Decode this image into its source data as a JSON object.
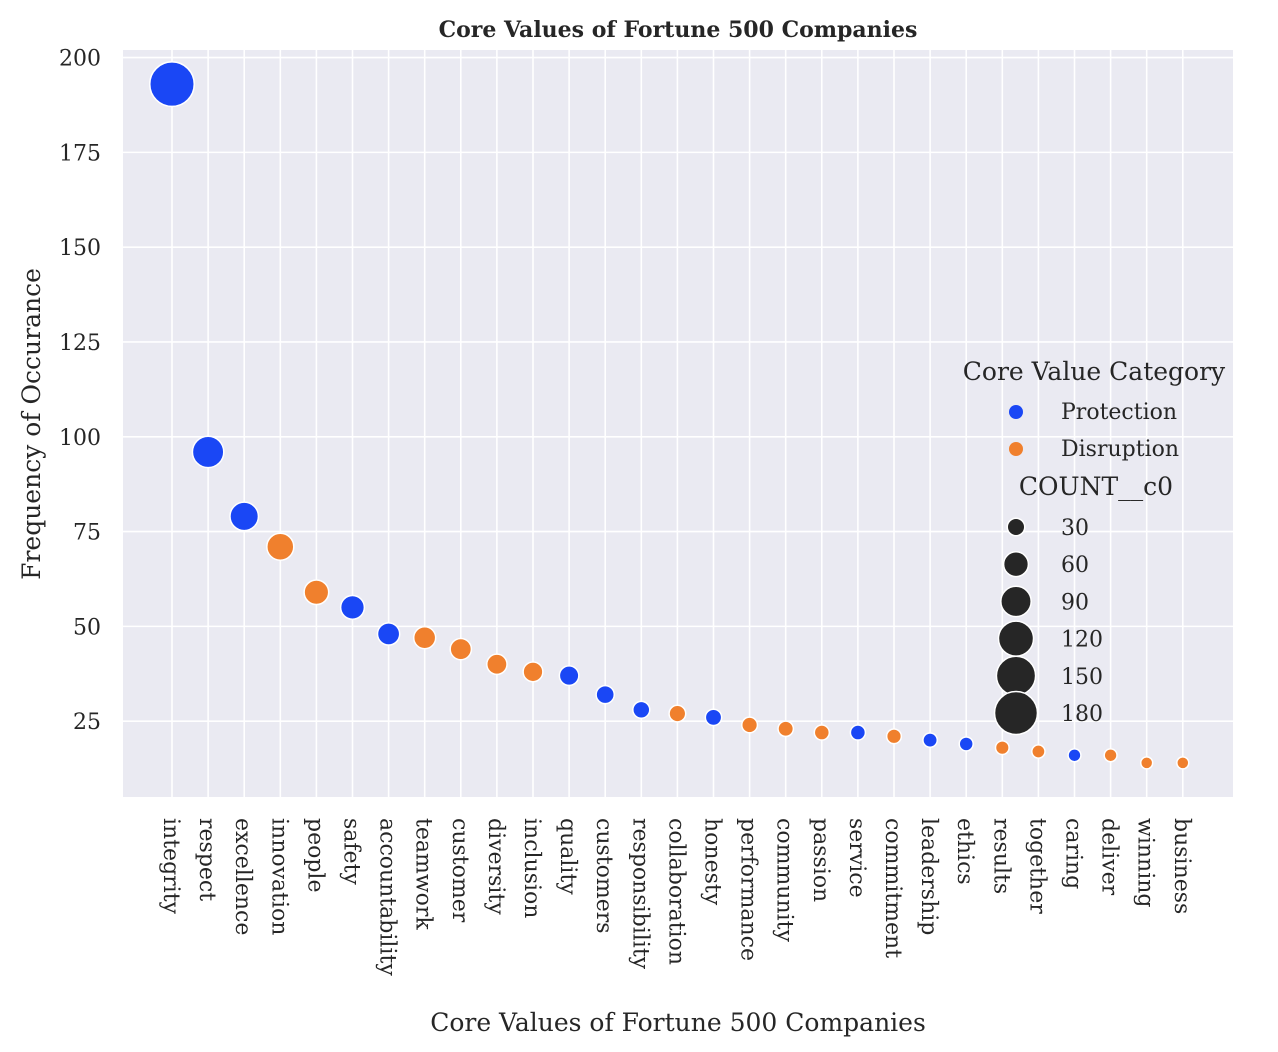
{
  "chart_data": {
    "type": "scatter",
    "title": "Core Values of Fortune 500 Companies",
    "xlabel": "Core Values of Fortune 500 Companies",
    "ylabel": "Frequency of Occurance",
    "ylim": [
      5,
      202
    ],
    "yticks": [
      25,
      50,
      75,
      100,
      125,
      150,
      175,
      200
    ],
    "grid": true,
    "legend_position": "right",
    "categories": [
      "integrity",
      "respect",
      "excellence",
      "innovation",
      "people",
      "safety",
      "accountability",
      "teamwork",
      "customer",
      "diversity",
      "inclusion",
      "quality",
      "customers",
      "responsibility",
      "collaboration",
      "honesty",
      "performance",
      "community",
      "passion",
      "service",
      "commitment",
      "leadership",
      "ethics",
      "results",
      "together",
      "caring",
      "deliver",
      "winning",
      "business"
    ],
    "values": [
      193,
      96,
      79,
      71,
      59,
      55,
      48,
      47,
      44,
      40,
      38,
      37,
      32,
      28,
      27,
      26,
      24,
      23,
      22,
      22,
      21,
      20,
      19,
      18,
      17,
      16,
      16,
      14,
      14
    ],
    "groups": [
      "Protection",
      "Protection",
      "Protection",
      "Disruption",
      "Disruption",
      "Protection",
      "Protection",
      "Disruption",
      "Disruption",
      "Disruption",
      "Disruption",
      "Protection",
      "Protection",
      "Protection",
      "Disruption",
      "Protection",
      "Disruption",
      "Disruption",
      "Disruption",
      "Protection",
      "Disruption",
      "Protection",
      "Protection",
      "Disruption",
      "Disruption",
      "Protection",
      "Disruption",
      "Disruption",
      "Disruption"
    ],
    "hue_legend": {
      "title": "Core Value Category",
      "entries": [
        {
          "name": "Protection",
          "color": "#1a47f5"
        },
        {
          "name": "Disruption",
          "color": "#f0802d"
        }
      ]
    },
    "size_legend": {
      "title": "COUNT__c0",
      "values": [
        30,
        60,
        90,
        120,
        150,
        180
      ],
      "color": "#262626"
    }
  }
}
